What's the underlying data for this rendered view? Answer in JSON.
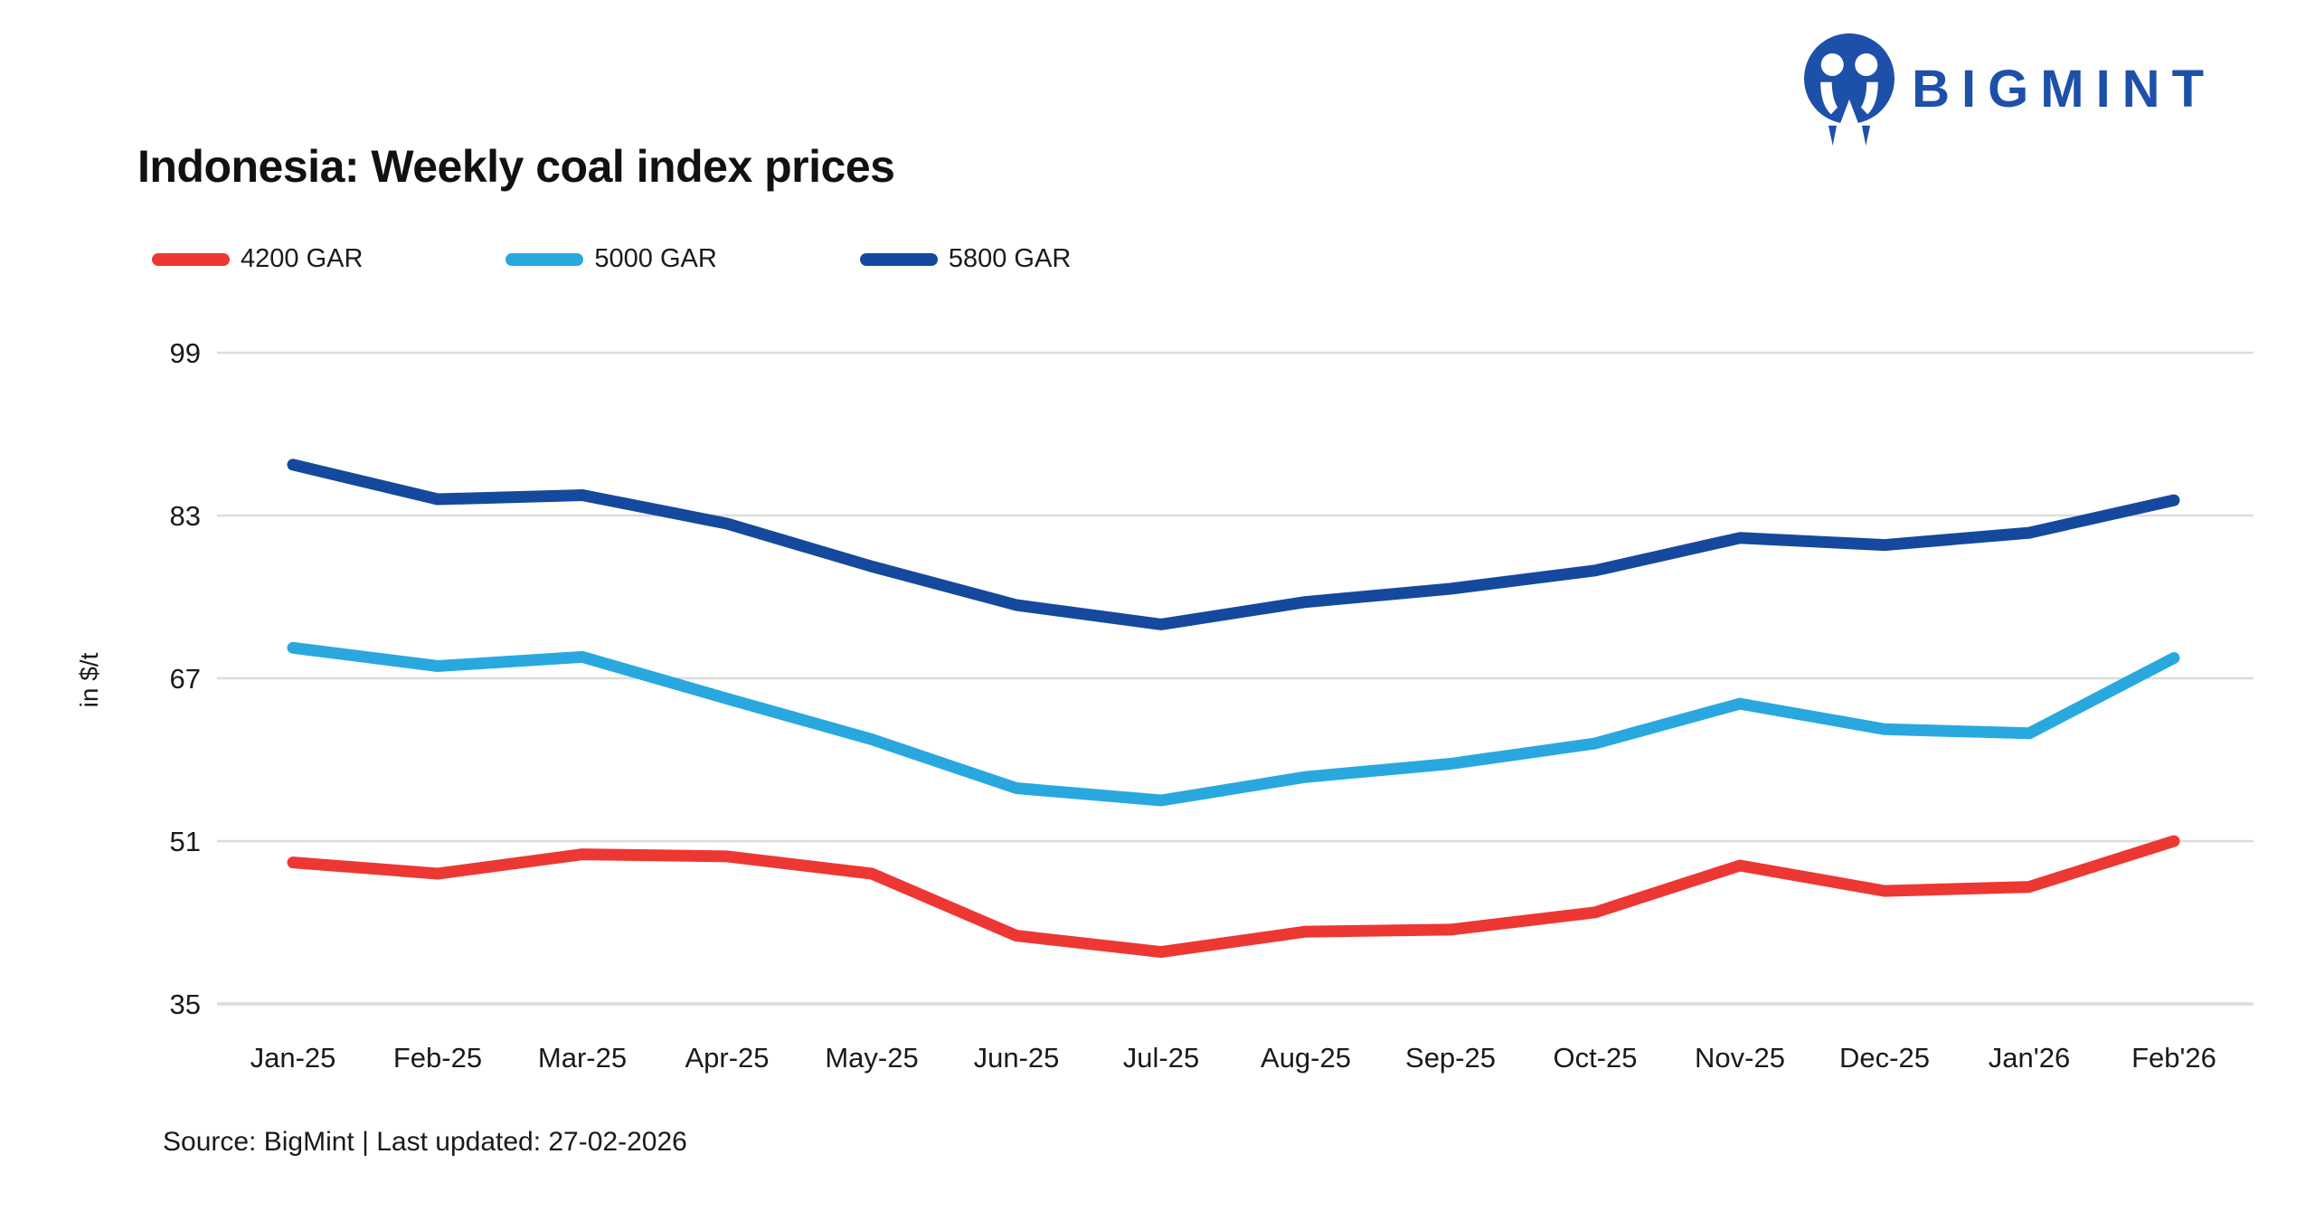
{
  "header": {
    "logo_text": "BIGMINT"
  },
  "title": "Indonesia: Weekly coal index prices",
  "source_note": "Source: BigMint | Last updated: 27-02-2026",
  "colors": {
    "red": "#ed3733",
    "light_blue": "#29a8e0",
    "dark_blue": "#14499d",
    "logo_blue": "#1d50a8",
    "grid": "#dcdcdc",
    "axis_text": "#1a1a1a"
  },
  "chart_data": {
    "type": "line",
    "title": "Indonesia: Weekly coal index prices",
    "xlabel": "",
    "ylabel": "in $/t",
    "ylim": [
      35,
      99
    ],
    "yticks": [
      35,
      51,
      67,
      83,
      99
    ],
    "grid": "horizontal",
    "legend_position": "top-left",
    "categories": [
      "Jan-25",
      "Feb-25",
      "Mar-25",
      "Apr-25",
      "May-25",
      "Jun-25",
      "Jul-25",
      "Aug-25",
      "Sep-25",
      "Oct-25",
      "Nov-25",
      "Dec-25",
      "Jan'26",
      "Feb'26"
    ],
    "series": [
      {
        "name": "4200 GAR",
        "color": "#ed3733",
        "values": [
          48.9,
          47.8,
          49.7,
          49.5,
          47.8,
          41.7,
          40.1,
          42.1,
          42.3,
          44.0,
          48.6,
          46.1,
          46.5,
          51.0
        ]
      },
      {
        "name": "5000 GAR",
        "color": "#29a8e0",
        "values": [
          70.0,
          68.2,
          69.1,
          65.0,
          61.0,
          56.2,
          55.0,
          57.3,
          58.6,
          60.6,
          64.5,
          62.0,
          61.6,
          69.0
        ]
      },
      {
        "name": "5800 GAR",
        "color": "#14499d",
        "values": [
          88.0,
          84.6,
          85.0,
          82.2,
          78.0,
          74.2,
          72.3,
          74.5,
          75.8,
          77.6,
          80.8,
          80.1,
          81.3,
          84.5
        ]
      }
    ]
  }
}
